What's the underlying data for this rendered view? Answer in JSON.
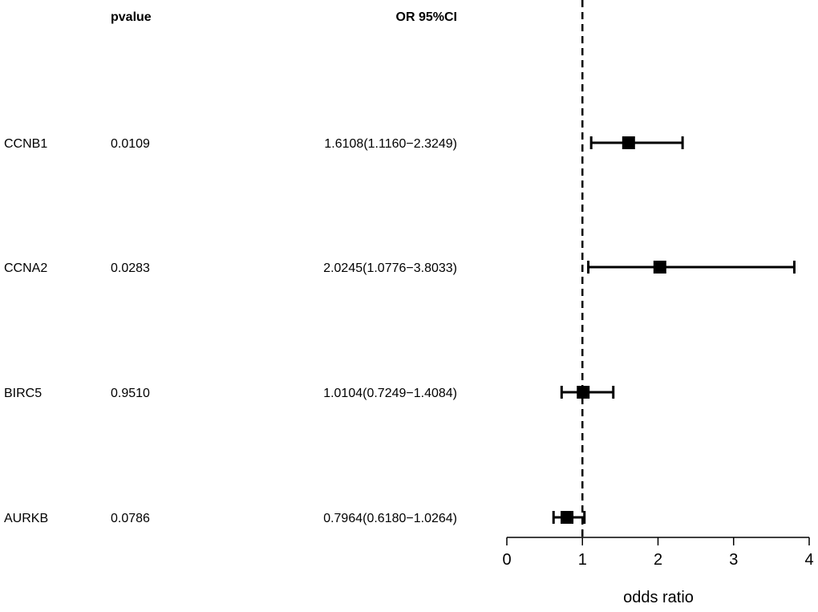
{
  "chart_data": {
    "type": "forest",
    "columns": {
      "pvalue": "pvalue",
      "or": "OR 95%CI"
    },
    "rows": [
      {
        "gene": "CCNB1",
        "pvalue": "0.0109",
        "or_text": "1.6108(1.1160−2.3249)",
        "or": 1.6108,
        "lo": 1.116,
        "hi": 2.3249
      },
      {
        "gene": "CCNA2",
        "pvalue": "0.0283",
        "or_text": "2.0245(1.0776−3.8033)",
        "or": 2.0245,
        "lo": 1.0776,
        "hi": 3.8033
      },
      {
        "gene": "BIRC5",
        "pvalue": "0.9510",
        "or_text": "1.0104(0.7249−1.4084)",
        "or": 1.0104,
        "lo": 0.7249,
        "hi": 1.4084
      },
      {
        "gene": "AURKB",
        "pvalue": "0.0786",
        "or_text": "0.7964(0.6180−1.0264)",
        "or": 0.7964,
        "lo": 0.618,
        "hi": 1.0264
      }
    ],
    "xlabel": "odds ratio",
    "xlim": [
      0,
      4
    ],
    "xticks": [
      "0",
      "1",
      "2",
      "3",
      "4"
    ],
    "reference_line": 1
  }
}
